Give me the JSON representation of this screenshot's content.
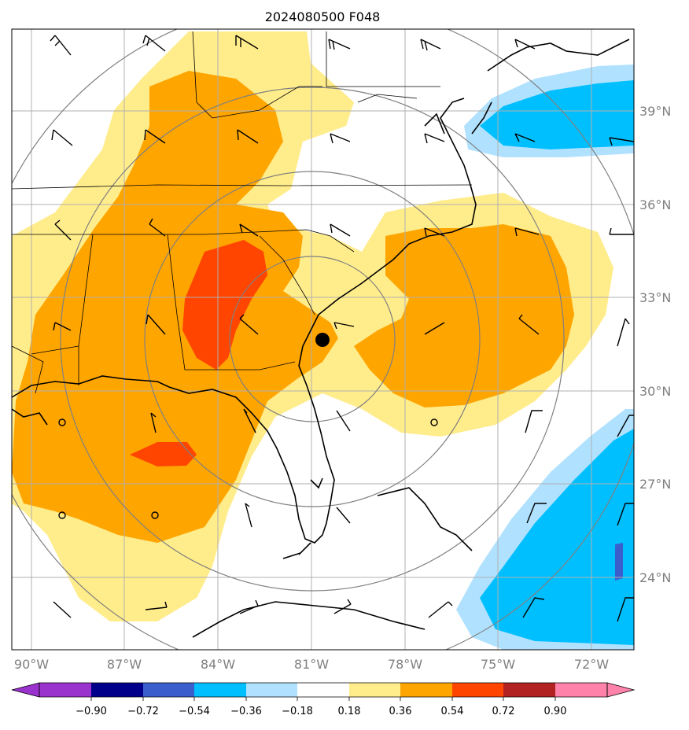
{
  "title": "2024080500 F048",
  "longitude_labels": [
    "90°W",
    "87°W",
    "84°W",
    "81°W",
    "78°W",
    "75°W",
    "72°W"
  ],
  "latitude_labels": [
    "39°N",
    "36°N",
    "33°N",
    "30°N",
    "27°N",
    "24°N"
  ],
  "colorbar": {
    "labels": [
      "−0.90",
      "−0.72",
      "−0.54",
      "−0.36",
      "−0.18",
      "0.18",
      "0.36",
      "0.54",
      "0.72",
      "0.90"
    ],
    "colors": [
      "#9a32cd",
      "#00008b",
      "#3a5fcd",
      "#00bfff",
      "#b0e2ff",
      "#ffffff",
      "#ffec8b",
      "#ffa500",
      "#ff4500",
      "#b22222",
      "#ff82ab"
    ]
  },
  "center_marker": {
    "lon": -80.7,
    "lat": 31.6
  },
  "colors": {
    "light_yellow": "#ffec8b",
    "orange": "#ffa500",
    "red_orange": "#ff4500",
    "light_blue": "#b0e2ff",
    "deep_sky_blue": "#00bfff",
    "royal_blue": "#3a5fcd",
    "grid": "#b0b0b0",
    "range_ring": "#808080"
  }
}
